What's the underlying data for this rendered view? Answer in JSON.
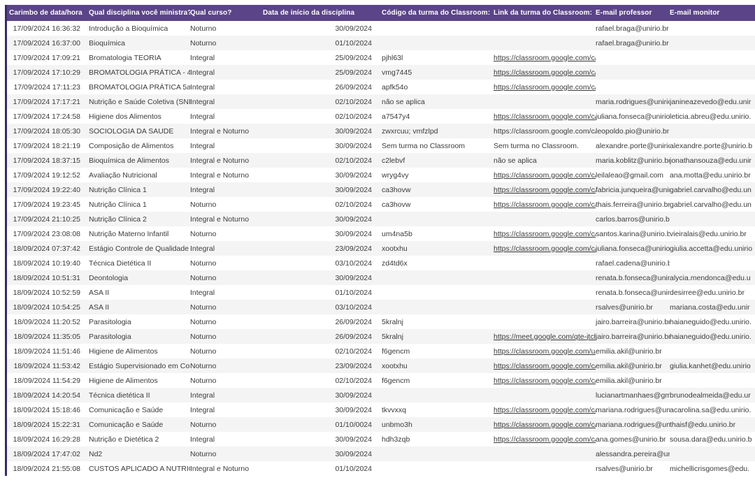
{
  "colors": {
    "header_bg": "#5b4488",
    "header_text": "#ffffff",
    "left_border": "#3a2a66",
    "stripe": "#f4f4f5",
    "body_text": "#3b3b3b"
  },
  "table": {
    "columns": [
      {
        "key": "timestamp",
        "label": "Carimbo de data/hora"
      },
      {
        "key": "discipline",
        "label": "Qual disciplina você ministra?"
      },
      {
        "key": "course",
        "label": "Qual curso?"
      },
      {
        "key": "start_date",
        "label": "Data de início da disciplina"
      },
      {
        "key": "code",
        "label": "Código da turma do Classroom:"
      },
      {
        "key": "link",
        "label": "Link da turma do Classroom:"
      },
      {
        "key": "prof_email",
        "label": "E-mail professor"
      },
      {
        "key": "monitor_email",
        "label": "E-mail monitor"
      }
    ],
    "rows": [
      {
        "timestamp": "17/09/2024 16:36:32",
        "discipline": "Introdução a Bioquímica",
        "course": "Noturno",
        "start_date": "30/09/2024",
        "code": "",
        "link": "",
        "link_underline": false,
        "prof_email": "rafael.braga@unirio.br",
        "monitor_email": ""
      },
      {
        "timestamp": "17/09/2024 16:37:00",
        "discipline": "Bioquímica",
        "course": "Noturno",
        "start_date": "01/10/2024",
        "code": "",
        "link": "",
        "link_underline": false,
        "prof_email": "rafael.braga@unirio.br",
        "monitor_email": ""
      },
      {
        "timestamp": "17/09/2024 17:09:21",
        "discipline": "Bromatologia  TEORIA",
        "course": "Integral",
        "start_date": "25/09/2024",
        "code": "pjhl63l",
        "link": "https://classroom.google.com/c/N",
        "link_underline": true,
        "prof_email": "",
        "monitor_email": ""
      },
      {
        "timestamp": "17/09/2024 17:10:29",
        "discipline": "BROMATOLOGIA PRÁTICA - 4a FEIR",
        "course": "Integral",
        "start_date": "25/09/2024",
        "code": "vmg7445",
        "link": "https://classroom.google.com/c/N",
        "link_underline": true,
        "prof_email": "",
        "monitor_email": ""
      },
      {
        "timestamp": "17/09/2024 17:11:23",
        "discipline": "BROMATOLOGIA PRÁTICA 5a FEIRA",
        "course": "Integral",
        "start_date": "26/09/2024",
        "code": "apfk54o",
        "link": "https://classroom.google.com/c/N",
        "link_underline": true,
        "prof_email": "",
        "monitor_email": ""
      },
      {
        "timestamp": "17/09/2024 17:17:21",
        "discipline": "Nutrição e Saúde Coletiva  (SNP005",
        "course": "Integral",
        "start_date": "02/10/2024",
        "code": "não se aplica",
        "link": "",
        "link_underline": false,
        "prof_email": "maria.rodrigues@unirio.b",
        "monitor_email": "janineazevedo@edu.unir"
      },
      {
        "timestamp": "17/09/2024 17:24:58",
        "discipline": "Higiene dos Alimentos",
        "course": "Integral",
        "start_date": "02/10/2024",
        "code": "a7547y4",
        "link": "https://classroom.google.com/c/N",
        "link_underline": true,
        "prof_email": "juliana.fonseca@unirio.b",
        "monitor_email": "leticia.abreu@edu.unirio."
      },
      {
        "timestamp": "17/09/2024 18:05:30",
        "discipline": "SOCIOLOGIA DA SAUDE",
        "course": "Integral e Noturno",
        "start_date": "30/09/2024",
        "code": "zwxrcuu; vmfzlpd",
        "link": "https://classroom.google.com/c/N",
        "link_underline": false,
        "prof_email": "leopoldo.pio@unirio.br",
        "monitor_email": ""
      },
      {
        "timestamp": "17/09/2024 18:21:19",
        "discipline": "Composição de Alimentos",
        "course": "Integral",
        "start_date": "30/09/2024",
        "code": "Sem turma no Classroom",
        "link": "Sem turma no Classroom.",
        "link_underline": false,
        "prof_email": "alexandre.porte@unirio.b",
        "monitor_email": "alexandre.porte@unirio.b"
      },
      {
        "timestamp": "17/09/2024 18:37:15",
        "discipline": "Bioquímica de Alimentos",
        "course": "Integral e Noturno",
        "start_date": "02/10/2024",
        "code": "c2lebvf",
        "link": "não se aplica",
        "link_underline": false,
        "prof_email": "maria.koblitz@unirio.br",
        "monitor_email": "jonathansouza@edu.unir"
      },
      {
        "timestamp": "17/09/2024 19:12:52",
        "discipline": "Avaliação Nutricional",
        "course": "Integral e Noturno",
        "start_date": "30/09/2024",
        "code": "wryg4vy",
        "link": "https://classroom.google.com/c/N",
        "link_underline": true,
        "prof_email": "leilaleao@gmail.com",
        "monitor_email": "ana.motta@edu.unirio.br"
      },
      {
        "timestamp": "17/09/2024 19:22:40",
        "discipline": "Nutrição Clínica 1",
        "course": "Integral",
        "start_date": "30/09/2024",
        "code": "ca3hovw",
        "link": "https://classroom.google.com/c/N",
        "link_underline": true,
        "prof_email": "fabricia.junqueira@unirio",
        "monitor_email": "gabriel.carvalho@edu.un"
      },
      {
        "timestamp": "17/09/2024 19:23:45",
        "discipline": "Nutrição Clínica 1",
        "course": "Noturno",
        "start_date": "02/10/2024",
        "code": "ca3hovw",
        "link": "https://classroom.google.com/c/N",
        "link_underline": true,
        "prof_email": "thais.ferreira@unirio.br",
        "monitor_email": "gabriel.carvalho@edu.un"
      },
      {
        "timestamp": "17/09/2024 21:10:25",
        "discipline": "Nutrição Clínica 2",
        "course": "Integral e Noturno",
        "start_date": "30/09/2024",
        "code": "",
        "link": "",
        "link_underline": false,
        "prof_email": "carlos.barros@unirio.br",
        "monitor_email": ""
      },
      {
        "timestamp": "17/09/2024 23:08:08",
        "discipline": "Nutrição Materno Infantil",
        "course": "Noturno",
        "start_date": "30/09/2024",
        "code": "um4na5b",
        "link": "https://classroom.google.com/c/N",
        "link_underline": true,
        "prof_email": "santos.karina@unirio.br",
        "monitor_email": "vieiralais@edu.unirio.br"
      },
      {
        "timestamp": "18/09/2024 07:37:42",
        "discipline": "Estágio Controle de Qualidade de Al",
        "course": "Integral",
        "start_date": "23/09/2024",
        "code": "xootxhu",
        "link": "https://classroom.google.com/c/N",
        "link_underline": true,
        "prof_email": "juliana.fonseca@unirio.b",
        "monitor_email": "giulia.accetta@edu.unirio"
      },
      {
        "timestamp": "18/09/2024 10:19:40",
        "discipline": "Técnica Dietética II",
        "course": "Noturno",
        "start_date": "03/10/2024",
        "code": "zd4td6x",
        "link": "",
        "link_underline": false,
        "prof_email": "rafael.cadena@unirio.br",
        "monitor_email": ""
      },
      {
        "timestamp": "18/09/2024 10:51:31",
        "discipline": "Deontologia",
        "course": "Noturno",
        "start_date": "30/09/2024",
        "code": "",
        "link": "",
        "link_underline": false,
        "prof_email": "renata.b.fonseca@unirio",
        "monitor_email": "alycia.mendonca@edu.u"
      },
      {
        "timestamp": "18/09/2024 10:52:59",
        "discipline": "ASA II",
        "course": "Integral",
        "start_date": "01/10/2024",
        "code": "",
        "link": "",
        "link_underline": false,
        "prof_email": "renata.b.fonseca@unirio",
        "monitor_email": "desirree@edu.unirio.br"
      },
      {
        "timestamp": "18/09/2024 10:54:25",
        "discipline": "ASA II",
        "course": "Noturno",
        "start_date": "03/10/2024",
        "code": "",
        "link": "",
        "link_underline": false,
        "prof_email": "rsalves@unirio.br",
        "monitor_email": "mariana.costa@edu.unir"
      },
      {
        "timestamp": "18/09/2024 11:20:52",
        "discipline": "Parasitologia",
        "course": "Noturno",
        "start_date": "26/09/2024",
        "code": "5kralnj",
        "link": "",
        "link_underline": false,
        "prof_email": "jairo.barreira@unirio.br",
        "monitor_email": "haianeguido@edu.unirio."
      },
      {
        "timestamp": "18/09/2024 11:35:05",
        "discipline": "Parasitologia",
        "course": "Noturno",
        "start_date": "26/09/2024",
        "code": "5kralnj",
        "link": "https://meet.google.com/qte-jtcb-v",
        "link_underline": true,
        "prof_email": "jairo.barreira@unirio.br",
        "monitor_email": "haianeguido@edu.unirio."
      },
      {
        "timestamp": "18/09/2024 11:51:46",
        "discipline": "Higiene de Alimentos",
        "course": "Noturno",
        "start_date": "02/10/2024",
        "code": "f6gencm",
        "link": "https://classroom.google.com/u/1",
        "link_underline": true,
        "prof_email": "emilia.akil@unirio.br",
        "monitor_email": ""
      },
      {
        "timestamp": "18/09/2024 11:53:42",
        "discipline": "Estágio Supervisionado em Controle",
        "course": "Noturno",
        "start_date": "23/09/2024",
        "code": "xootxhu",
        "link": "https://classroom.google.com/c/N",
        "link_underline": true,
        "prof_email": "emilia.akil@unirio.br",
        "monitor_email": "giulia.kanhet@edu.unirio"
      },
      {
        "timestamp": "18/09/2024 11:54:29",
        "discipline": "Higiene de Alimentos",
        "course": "Noturno",
        "start_date": "02/10/2024",
        "code": "f6gencm",
        "link": "https://classroom.google.com/c/N",
        "link_underline": true,
        "prof_email": "emilia.akil@unirio.br",
        "monitor_email": ""
      },
      {
        "timestamp": "18/09/2024 14:20:54",
        "discipline": "Técnica dietética II",
        "course": "Integral",
        "start_date": "30/09/2024",
        "code": "",
        "link": "",
        "link_underline": false,
        "prof_email": "lucianartmanhaes@gma",
        "monitor_email": "brunodealmeida@edu.ur"
      },
      {
        "timestamp": "18/09/2024 15:18:46",
        "discipline": "Comunicação e Saúde",
        "course": "Integral",
        "start_date": "30/09/2024",
        "code": "tkvvxxq",
        "link": "https://classroom.google.com/c/N",
        "link_underline": true,
        "prof_email": "mariana.rodrigues@uniri",
        "monitor_email": "acarolina.sa@edu.unirio."
      },
      {
        "timestamp": "18/09/2024 15:22:31",
        "discipline": "Comunicação e Saúde",
        "course": "Noturno",
        "start_date": "01/10/0024",
        "code": "unbmo3h",
        "link": "https://classroom.google.com/c/N",
        "link_underline": true,
        "prof_email": "mariana.rodrigues@uniri",
        "monitor_email": "thaisf@edu.unirio.br"
      },
      {
        "timestamp": "18/09/2024 16:29:28",
        "discipline": "Nutrição e Dietética 2",
        "course": "Integral",
        "start_date": "30/09/2024",
        "code": "hdh3zqb",
        "link": "https://classroom.google.com/c/N",
        "link_underline": true,
        "prof_email": "ana.gomes@unirio.br",
        "monitor_email": "sousa.dara@edu.unirio.b"
      },
      {
        "timestamp": "18/09/2024 17:47:02",
        "discipline": "Nd2",
        "course": "Noturno",
        "start_date": "30/09/2024",
        "code": "",
        "link": "",
        "link_underline": false,
        "prof_email": "alessandra.pereira@uniri",
        "monitor_email": ""
      },
      {
        "timestamp": "18/09/2024 21:55:08",
        "discipline": "CUSTOS APLICADO A  NUTRIÇÃO",
        "course": "Integral e Noturno",
        "start_date": "01/10/2024",
        "code": "",
        "link": "",
        "link_underline": false,
        "prof_email": "rsalves@unirio.br",
        "monitor_email": "michellicrisgomes@edu."
      }
    ]
  }
}
